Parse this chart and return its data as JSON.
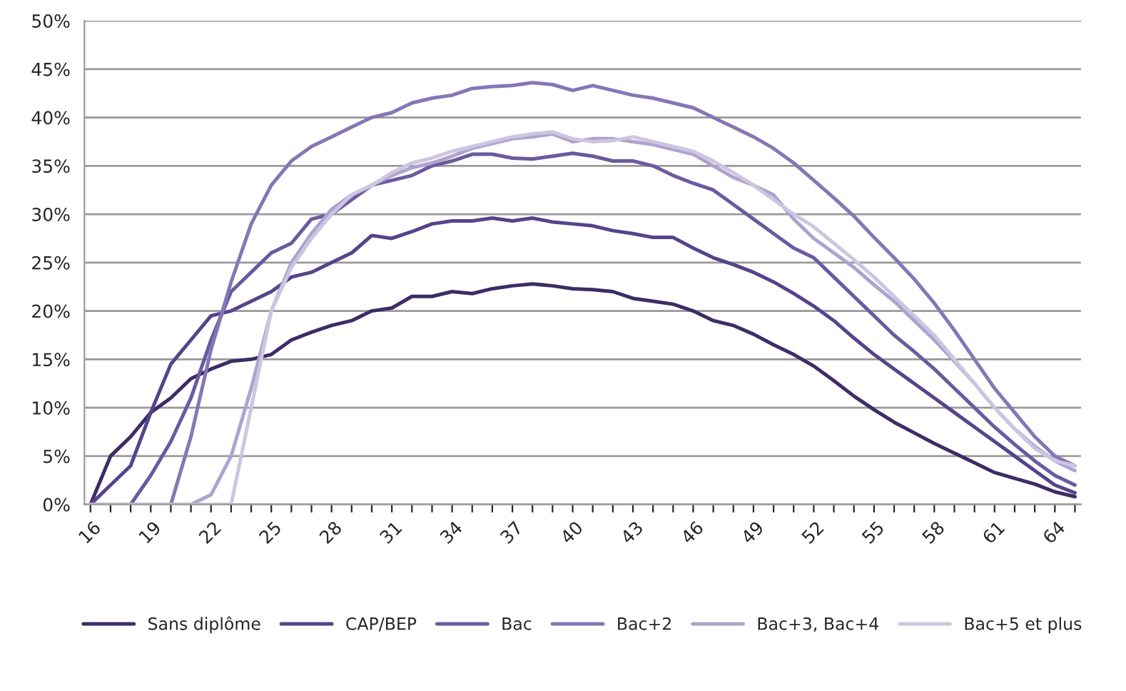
{
  "chart_data": {
    "type": "line",
    "categories": [
      "16",
      null,
      null,
      "19",
      null,
      null,
      "22",
      null,
      null,
      "25",
      null,
      null,
      "28",
      null,
      null,
      "31",
      null,
      null,
      "34",
      null,
      null,
      "37",
      null,
      null,
      "40",
      null,
      null,
      "43",
      null,
      null,
      "46",
      null,
      null,
      "49",
      null,
      null,
      "52",
      null,
      null,
      "55",
      null,
      null,
      "58",
      null,
      null,
      "61",
      null,
      null,
      "64",
      null
    ],
    "series": [
      {
        "name": "Sans diplôme",
        "color": "#3d2c66",
        "values": [
          0,
          5,
          7,
          9.5,
          11,
          13,
          14,
          14.8,
          15,
          15.5,
          17,
          17.8,
          18.5,
          19,
          20,
          20.3,
          21.5,
          21.5,
          22,
          21.8,
          22.3,
          22.6,
          22.8,
          22.6,
          22.3,
          22.2,
          22,
          21.3,
          21,
          20.7,
          20,
          19,
          18.5,
          17.6,
          16.5,
          15.5,
          14.3,
          12.8,
          11.2,
          9.8,
          8.5,
          7.4,
          6.3,
          5.3,
          4.3,
          3.3,
          2.7,
          2.1,
          1.3,
          0.8
        ]
      },
      {
        "name": "CAP/BEP",
        "color": "#55448a",
        "values": [
          0,
          2,
          4,
          9.5,
          14.5,
          17,
          19.5,
          20,
          21,
          22,
          23.5,
          24,
          25,
          26,
          27.8,
          27.5,
          28.2,
          29,
          29.3,
          29.3,
          29.6,
          29.3,
          29.6,
          29.2,
          29,
          28.8,
          28.3,
          28,
          27.6,
          27.6,
          26.5,
          25.5,
          24.8,
          24,
          23,
          21.8,
          20.5,
          19,
          17.2,
          15.5,
          14,
          12.5,
          11,
          9.5,
          8,
          6.5,
          5,
          3.5,
          2,
          1.2
        ]
      },
      {
        "name": "Bac",
        "color": "#6a5aa0",
        "values": [
          0,
          0,
          0,
          3,
          6.5,
          11,
          17,
          22,
          24,
          26,
          27,
          29.5,
          30,
          31.5,
          33,
          33.5,
          34,
          35,
          35.5,
          36.2,
          36.2,
          35.8,
          35.7,
          36,
          36.3,
          36,
          35.5,
          35.5,
          35,
          34,
          33.2,
          32.5,
          31,
          29.5,
          28,
          26.5,
          25.5,
          23.5,
          21.5,
          19.5,
          17.5,
          15.8,
          14,
          12,
          10,
          8,
          6.2,
          4.5,
          3,
          2
        ]
      },
      {
        "name": "Bac+2",
        "color": "#8577b5",
        "values": [
          0,
          0,
          0,
          0,
          0,
          7,
          16,
          23,
          29,
          33,
          35.5,
          37,
          38,
          39,
          40,
          40.5,
          41.5,
          42,
          42.3,
          43,
          43.2,
          43.3,
          43.6,
          43.4,
          42.8,
          43.3,
          42.8,
          42.3,
          42,
          41.5,
          41,
          40,
          39,
          38,
          36.8,
          35.3,
          33.5,
          31.7,
          29.8,
          27.6,
          25.5,
          23.3,
          20.8,
          18,
          15,
          12,
          9.5,
          7,
          5,
          4
        ]
      },
      {
        "name": "Bac+3, Bac+4",
        "color": "#aea3cf",
        "values": [
          0,
          0,
          0,
          0,
          0,
          0,
          1,
          5,
          12,
          20,
          25,
          28,
          30.5,
          32,
          33,
          34,
          34.8,
          35.3,
          36,
          36.8,
          37.3,
          37.8,
          38,
          38.3,
          37.5,
          37.8,
          37.8,
          37.5,
          37.2,
          36.7,
          36.2,
          35,
          33.8,
          33,
          32,
          29.5,
          27.5,
          26,
          24.5,
          22.7,
          21,
          19,
          17,
          14.8,
          12.5,
          10,
          7.8,
          6,
          4.5,
          3.5
        ]
      },
      {
        "name": "Bac+5 et plus",
        "color": "#cdc6e0",
        "values": [
          0,
          0,
          0,
          0,
          0,
          0,
          0,
          0,
          10,
          20,
          24.5,
          27.5,
          30,
          32,
          33,
          34.3,
          35.3,
          35.8,
          36.5,
          37,
          37.5,
          38,
          38.3,
          38.5,
          37.8,
          37.5,
          37.6,
          38,
          37.5,
          37,
          36.5,
          35.5,
          34.3,
          33,
          31.5,
          30,
          28.7,
          27,
          25.3,
          23.5,
          21.5,
          19.5,
          17.5,
          15,
          12.5,
          10,
          7.8,
          5.8,
          4.5,
          4
        ]
      }
    ],
    "ylim": [
      0,
      50
    ],
    "yticks": [
      {
        "value": 0,
        "label": "0%"
      },
      {
        "value": 5,
        "label": "5%"
      },
      {
        "value": 10,
        "label": "10%"
      },
      {
        "value": 15,
        "label": "15%"
      },
      {
        "value": 20,
        "label": "20%"
      },
      {
        "value": 25,
        "label": "25%"
      },
      {
        "value": 30,
        "label": "30%"
      },
      {
        "value": 35,
        "label": "35%"
      },
      {
        "value": 40,
        "label": "40%"
      },
      {
        "value": 45,
        "label": "45%"
      },
      {
        "value": 50,
        "label": "50%"
      }
    ],
    "grid": "y",
    "legend": "bottom",
    "marker": "none",
    "line_style": "solid"
  }
}
